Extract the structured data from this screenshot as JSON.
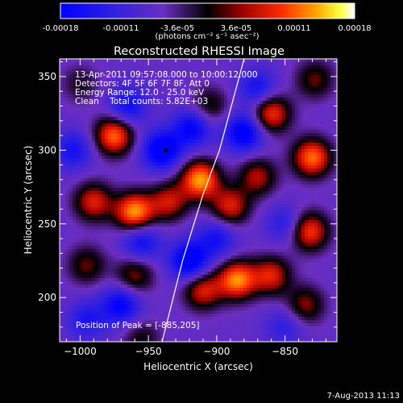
{
  "colorbar": {
    "ticks": [
      "-0.00018",
      "-0.00011",
      "-3.6e-05",
      "3.6e-05",
      "0.00011",
      "0.00018"
    ],
    "units_text": "(photons cm⁻² s⁻¹ asec⁻²)"
  },
  "annotations": {
    "time_range": "13-Apr-2011 09:57:08.000 to 10:00:12.000",
    "detectors": "Detectors: 4F 5F 6F 7F 8F, Att 0",
    "energy_range": "Energy Range: 12.0 - 25.0 keV",
    "clean_counts": "Clean    Total counts: 5.82E+03",
    "peak_position": "Position of Peak = [-885,205]"
  },
  "footer_date": "7-Aug-2013 11:13",
  "chart_data": {
    "type": "heatmap",
    "title": "Reconstructed RHESSI Image",
    "xlabel": "Heliocentric X (arcsec)",
    "ylabel": "Heliocentric Y (arcsec)",
    "xlim": [
      -1015,
      -812
    ],
    "ylim": [
      170,
      362
    ],
    "xticks": [
      -1000,
      -950,
      -900,
      -850
    ],
    "yticks": [
      200,
      250,
      300,
      350
    ],
    "colorbar_range": [
      -0.00018,
      0.00018
    ],
    "colormap": "blue-purple-black-red-yellow-white",
    "limb_curve": [
      [
        -940,
        170
      ],
      [
        -925,
        225
      ],
      [
        -910,
        270
      ],
      [
        -898,
        300
      ],
      [
        -880,
        362
      ]
    ],
    "marker": {
      "x": -937,
      "y": 300
    },
    "blobs": [
      {
        "x": -975,
        "y": 310,
        "value": 0.00016
      },
      {
        "x": -990,
        "y": 265,
        "value": 0.00012
      },
      {
        "x": -960,
        "y": 258,
        "value": 0.00018
      },
      {
        "x": -935,
        "y": 265,
        "value": 0.00011
      },
      {
        "x": -912,
        "y": 280,
        "value": 0.00018
      },
      {
        "x": -890,
        "y": 262,
        "value": 0.00012
      },
      {
        "x": -870,
        "y": 282,
        "value": 0.0001
      },
      {
        "x": -860,
        "y": 325,
        "value": 0.00014
      },
      {
        "x": -828,
        "y": 348,
        "value": 8e-05
      },
      {
        "x": -830,
        "y": 295,
        "value": 0.00016
      },
      {
        "x": -832,
        "y": 245,
        "value": 0.00014
      },
      {
        "x": -905,
        "y": 330,
        "value": 7e-05
      },
      {
        "x": -885,
        "y": 212,
        "value": 0.00017
      },
      {
        "x": -910,
        "y": 205,
        "value": 0.00012
      },
      {
        "x": -860,
        "y": 215,
        "value": 0.00012
      },
      {
        "x": -960,
        "y": 215,
        "value": 9e-05
      },
      {
        "x": -995,
        "y": 222,
        "value": 8e-05
      },
      {
        "x": -835,
        "y": 195,
        "value": 9e-05
      },
      {
        "x": -955,
        "y": 172,
        "value": 6e-05
      },
      {
        "x": -1000,
        "y": 345,
        "value": 5e-05
      },
      {
        "x": -940,
        "y": 300,
        "value": -0.00015
      },
      {
        "x": -965,
        "y": 330,
        "value": -0.0001
      },
      {
        "x": -918,
        "y": 315,
        "value": -0.00012
      },
      {
        "x": -880,
        "y": 312,
        "value": -0.00014
      },
      {
        "x": -870,
        "y": 342,
        "value": -9e-05
      },
      {
        "x": -920,
        "y": 225,
        "value": -0.00015
      },
      {
        "x": -955,
        "y": 238,
        "value": -0.0001
      },
      {
        "x": -900,
        "y": 240,
        "value": -9e-05
      },
      {
        "x": -995,
        "y": 185,
        "value": -8e-05
      },
      {
        "x": -970,
        "y": 195,
        "value": -0.00012
      },
      {
        "x": -850,
        "y": 250,
        "value": -7e-05
      },
      {
        "x": -1005,
        "y": 300,
        "value": -9e-05
      },
      {
        "x": -850,
        "y": 180,
        "value": -6e-05
      }
    ]
  }
}
